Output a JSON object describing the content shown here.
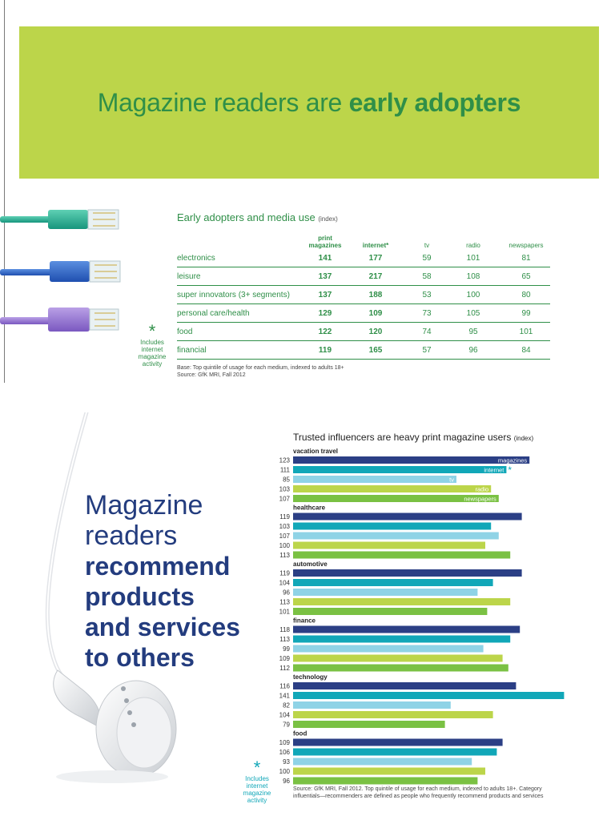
{
  "colors": {
    "banner_bg": "#bcd54a",
    "brand_green": "#2f8f48",
    "navy": "#233c7e",
    "magazines": "#2b3f85",
    "internet": "#11a7b8",
    "tv": "#8fd3e6",
    "radio": "#bcd54a",
    "newspapers": "#7ac143"
  },
  "banner": {
    "title_light": "Magazine readers are ",
    "title_bold": "early adopters"
  },
  "section1": {
    "asterisk_note": {
      "symbol": "*",
      "lines": [
        "Includes",
        "internet",
        "magazine",
        "activity"
      ]
    }
  },
  "section2": {
    "headline": {
      "light_lines": [
        "Magazine",
        "readers"
      ],
      "bold_lines": [
        "recommend",
        "products",
        "and services",
        "to others"
      ]
    },
    "asterisk_note": {
      "symbol": "*",
      "lines": [
        "Includes",
        "internet",
        "magazine",
        "activity"
      ]
    }
  },
  "chart_data": [
    {
      "type": "table",
      "title": "Early adopters and media use",
      "title_suffix": "(index)",
      "columns": [
        "print magazines",
        "internet*",
        "tv",
        "radio",
        "newspapers"
      ],
      "rows": [
        {
          "label": "electronics",
          "values": [
            141,
            177,
            59,
            101,
            81
          ]
        },
        {
          "label": "leisure",
          "values": [
            137,
            217,
            58,
            108,
            65
          ]
        },
        {
          "label": "super innovators (3+ segments)",
          "values": [
            137,
            188,
            53,
            100,
            80
          ]
        },
        {
          "label": "personal care/health",
          "values": [
            129,
            109,
            73,
            105,
            99
          ]
        },
        {
          "label": "food",
          "values": [
            122,
            120,
            74,
            95,
            101
          ]
        },
        {
          "label": "financial",
          "values": [
            119,
            165,
            57,
            96,
            84
          ]
        }
      ],
      "notes": [
        "Base: Top quintile of usage for each medium, indexed to adults 18+",
        "Source: GfK MRI, Fall 2012"
      ]
    },
    {
      "type": "bar",
      "orientation": "horizontal",
      "title": "Trusted influencers are heavy print magazine users",
      "title_suffix": "(index)",
      "series_names": [
        "magazines",
        "internet",
        "tv",
        "radio",
        "newspapers"
      ],
      "internet_marker": "*",
      "groups": [
        {
          "category": "vacation travel",
          "values": [
            123,
            111,
            85,
            103,
            107
          ]
        },
        {
          "category": "healthcare",
          "values": [
            119,
            103,
            107,
            100,
            113
          ]
        },
        {
          "category": "automotive",
          "values": [
            119,
            104,
            96,
            113,
            101
          ]
        },
        {
          "category": "finance",
          "values": [
            118,
            113,
            99,
            109,
            112
          ]
        },
        {
          "category": "technology",
          "values": [
            116,
            141,
            82,
            104,
            79
          ]
        },
        {
          "category": "food",
          "values": [
            109,
            106,
            93,
            100,
            96
          ]
        }
      ],
      "source": "Source: GfK MRI, Fall 2012. Top quintile of usage for each medium, indexed to adults 18+. Category influentials—recommenders are defined as people who frequently recommend products and services"
    }
  ]
}
